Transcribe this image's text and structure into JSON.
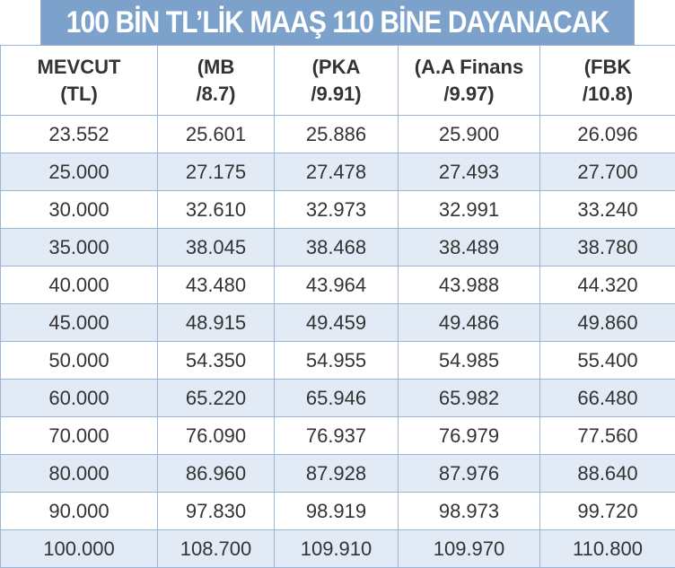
{
  "header": {
    "title": "100 BİN TL’LİK MAAŞ 110 BİNE DAYANACAK"
  },
  "table": {
    "columns": [
      [
        "MEVCUT",
        "(TL)"
      ],
      [
        "(MB",
        "/8.7)"
      ],
      [
        "(PKA",
        "/9.91)"
      ],
      [
        "(A.A Finans",
        "/9.97)"
      ],
      [
        "(FBK",
        "/10.8)"
      ]
    ],
    "rows": [
      [
        "23.552",
        "25.601",
        "25.886",
        "25.900",
        "26.096"
      ],
      [
        "25.000",
        "27.175",
        "27.478",
        "27.493",
        "27.700"
      ],
      [
        "30.000",
        "32.610",
        "32.973",
        "32.991",
        "33.240"
      ],
      [
        "35.000",
        "38.045",
        "38.468",
        "38.489",
        "38.780"
      ],
      [
        "40.000",
        "43.480",
        "43.964",
        "43.988",
        "44.320"
      ],
      [
        "45.000",
        "48.915",
        "49.459",
        "49.486",
        "49.860"
      ],
      [
        "50.000",
        "54.350",
        "54.955",
        "54.985",
        "55.400"
      ],
      [
        "60.000",
        "65.220",
        "65.946",
        "65.982",
        "66.480"
      ],
      [
        "70.000",
        "76.090",
        "76.937",
        "76.979",
        "77.560"
      ],
      [
        "80.000",
        "86.960",
        "87.928",
        "87.976",
        "88.640"
      ],
      [
        "90.000",
        "97.830",
        "98.919",
        "98.973",
        "99.720"
      ],
      [
        "100.000",
        "108.700",
        "109.910",
        "109.970",
        "110.800"
      ]
    ]
  }
}
